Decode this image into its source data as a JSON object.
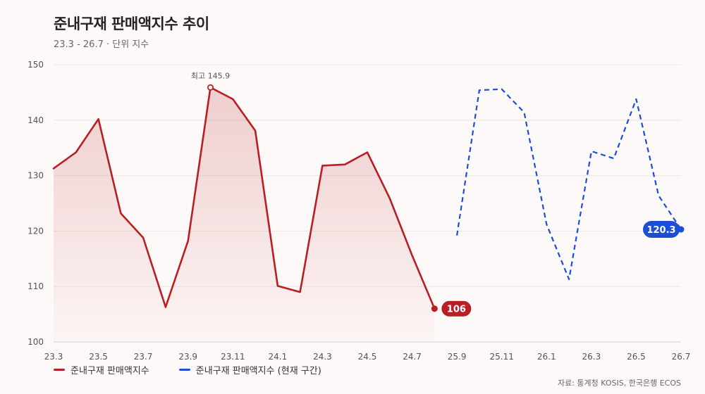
{
  "header": {
    "title": "준내구재 판매액지수 추이",
    "subtitle": "23.3 - 26.7 · 단위 지수"
  },
  "legend": {
    "series1": "준내구재 판매액지수",
    "series2": "준내구재 판매액지수 (현재 구간)"
  },
  "source": "자료: 통계청 KOSIS, 한국은행 ECOS",
  "colors": {
    "series1": "#b81f24",
    "series2": "#1d4ed8",
    "grid": "#eee6e4",
    "axis": "#5a5050"
  },
  "chart_data": {
    "type": "line",
    "ylim": [
      100,
      150
    ],
    "yticks": [
      100,
      110,
      120,
      130,
      140,
      150
    ],
    "xtick_labels": [
      "23.3",
      "23.5",
      "23.7",
      "23.9",
      "23.11",
      "24.1",
      "24.3",
      "24.5",
      "24.7",
      "25.9",
      "25.11",
      "26.1",
      "26.3",
      "26.5",
      "26.7"
    ],
    "x": [
      "23.3",
      "23.4",
      "23.5",
      "23.6",
      "23.7",
      "23.8",
      "23.9",
      "23.10",
      "23.11",
      "23.12",
      "24.1",
      "24.2",
      "24.3",
      "24.4",
      "24.5",
      "24.6",
      "24.7",
      "24.8",
      "25.9",
      "25.10",
      "25.11",
      "25.12",
      "26.1",
      "26.2",
      "26.3",
      "26.4",
      "26.5",
      "26.6",
      "26.7"
    ],
    "series": [
      {
        "name": "준내구재 판매액지수",
        "style": "solid-area",
        "x": [
          "23.3",
          "23.4",
          "23.5",
          "23.6",
          "23.7",
          "23.8",
          "23.9",
          "23.10",
          "23.11",
          "23.12",
          "24.1",
          "24.2",
          "24.3",
          "24.4",
          "24.5",
          "24.6",
          "24.7",
          "24.8"
        ],
        "values": [
          131.3,
          134.2,
          140.2,
          123.2,
          118.8,
          106.3,
          118.2,
          145.9,
          143.8,
          138.1,
          110.1,
          109.0,
          131.8,
          132.0,
          134.2,
          125.9,
          115.6,
          106.0
        ]
      },
      {
        "name": "준내구재 판매액지수 (현재 구간)",
        "style": "dashed",
        "x": [
          "25.9",
          "25.10",
          "25.11",
          "25.12",
          "26.1",
          "26.2",
          "26.3",
          "26.4",
          "26.5",
          "26.6",
          "26.7"
        ],
        "values": [
          119.2,
          145.4,
          145.6,
          141.4,
          121.2,
          111.3,
          134.4,
          133.1,
          143.8,
          126.4,
          120.3
        ]
      }
    ],
    "annotations": {
      "max_label": "최고 145.9",
      "max_value": 145.9,
      "max_x": "23.10",
      "end1_label": "106",
      "end1_value": 106.0,
      "end2_label": "120.3",
      "end2_value": 120.3
    }
  }
}
